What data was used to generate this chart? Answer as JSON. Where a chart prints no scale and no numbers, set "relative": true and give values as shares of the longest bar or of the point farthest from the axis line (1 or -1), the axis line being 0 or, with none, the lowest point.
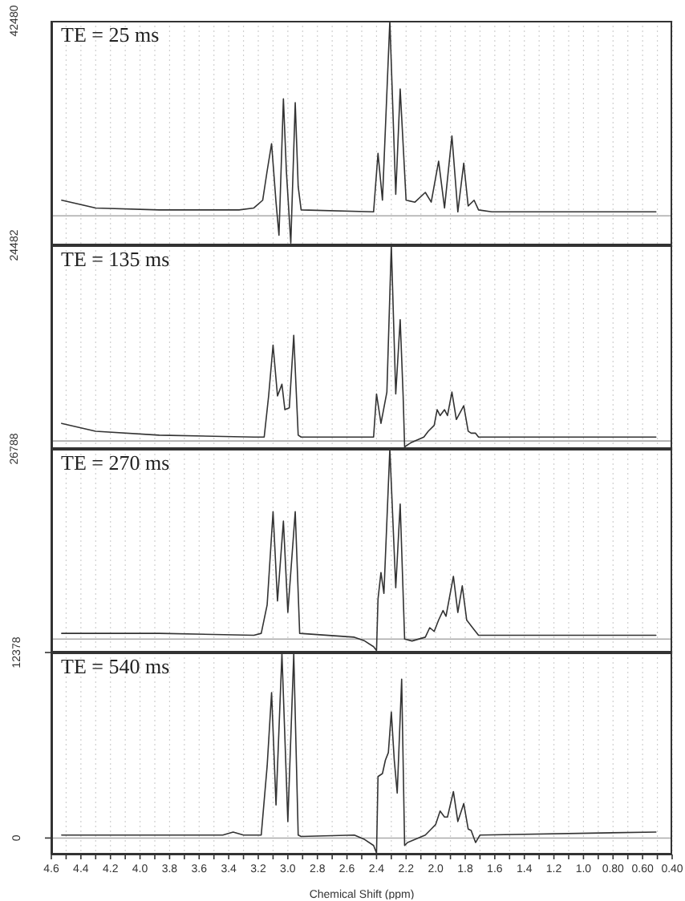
{
  "chart_data": [
    {
      "type": "line",
      "title": "TE = 25 ms",
      "relative": true,
      "annotations": [
        "42480"
      ],
      "color": "#333333",
      "x": [
        4.53,
        4.3,
        3.87,
        3.33,
        3.23,
        3.17,
        3.14,
        3.11,
        3.08,
        3.06,
        3.03,
        3.01,
        2.98,
        2.95,
        2.93,
        2.91,
        2.42,
        2.39,
        2.36,
        2.31,
        2.27,
        2.24,
        2.2,
        2.14,
        2.07,
        2.03,
        1.98,
        1.94,
        1.89,
        1.85,
        1.81,
        1.78,
        1.74,
        1.71,
        1.62,
        0.51
      ],
      "values": [
        0.08,
        0.04,
        0.03,
        0.03,
        0.04,
        0.08,
        0.23,
        0.37,
        0.07,
        -0.1,
        0.6,
        0.23,
        -0.14,
        0.58,
        0.15,
        0.03,
        0.02,
        0.32,
        0.08,
        1,
        0.11,
        0.65,
        0.08,
        0.07,
        0.12,
        0.07,
        0.28,
        0.04,
        0.41,
        0.02,
        0.27,
        0.05,
        0.08,
        0.03,
        0.02,
        0.02
      ],
      "xlim": [
        4.6,
        0.4
      ],
      "xticks": [
        {
          "value": 4.6,
          "label": null
        },
        {
          "value": 4.5,
          "label": null
        },
        {
          "value": 4.4,
          "label": null
        },
        {
          "value": 4.3,
          "label": null
        },
        {
          "value": 4.2,
          "label": null
        },
        {
          "value": 4.1,
          "label": null
        },
        {
          "value": 4,
          "label": null
        },
        {
          "value": 3.9,
          "label": null
        },
        {
          "value": 3.8,
          "label": null
        },
        {
          "value": 3.7,
          "label": null
        },
        {
          "value": 3.6,
          "label": null
        },
        {
          "value": 3.5,
          "label": null
        },
        {
          "value": 3.4,
          "label": null
        },
        {
          "value": 3.3,
          "label": null
        },
        {
          "value": 3.2,
          "label": null
        },
        {
          "value": 3.1,
          "label": null
        },
        {
          "value": 3,
          "label": null
        },
        {
          "value": 2.9,
          "label": null
        },
        {
          "value": 2.8,
          "label": null
        },
        {
          "value": 2.7,
          "label": null
        },
        {
          "value": 2.6,
          "label": null
        },
        {
          "value": 2.5,
          "label": null
        },
        {
          "value": 2.4,
          "label": null
        },
        {
          "value": 2.3,
          "label": null
        },
        {
          "value": 2.2,
          "label": null
        },
        {
          "value": 2.1,
          "label": null
        },
        {
          "value": 2,
          "label": null
        },
        {
          "value": 1.9,
          "label": null
        },
        {
          "value": 1.8,
          "label": null
        },
        {
          "value": 1.7,
          "label": null
        },
        {
          "value": 1.6,
          "label": null
        },
        {
          "value": 1.5,
          "label": null
        },
        {
          "value": 1.4,
          "label": null
        },
        {
          "value": 1.3,
          "label": null
        },
        {
          "value": 1.2,
          "label": null
        },
        {
          "value": 1.1,
          "label": null
        },
        {
          "value": 1,
          "label": null
        },
        {
          "value": 0.9,
          "label": null
        },
        {
          "value": 0.8,
          "label": null
        },
        {
          "value": 0.7,
          "label": null
        },
        {
          "value": 0.6,
          "label": null
        },
        {
          "value": 0.5,
          "label": null
        },
        {
          "value": 0.4,
          "label": null
        }
      ],
      "grid": "x",
      "tick_labels": false,
      "ref_lines": [
        {
          "axis": "y",
          "value": 0,
          "color": "#aaaaaa"
        }
      ]
    },
    {
      "type": "line",
      "title": "TE = 135 ms",
      "relative": true,
      "annotations": [
        "24482"
      ],
      "color": "#333333",
      "x": [
        4.53,
        4.3,
        3.87,
        3.23,
        3.16,
        3.13,
        3.1,
        3.07,
        3.04,
        3.02,
        2.99,
        2.96,
        2.93,
        2.91,
        2.42,
        2.4,
        2.37,
        2.33,
        2.3,
        2.27,
        2.24,
        2.22,
        2.21,
        2.17,
        2.08,
        2.05,
        2.01,
        1.99,
        1.97,
        1.94,
        1.92,
        1.89,
        1.86,
        1.81,
        1.78,
        1.76,
        1.73,
        1.71,
        0.51
      ],
      "values": [
        0.09,
        0.05,
        0.03,
        0.02,
        0.02,
        0.23,
        0.49,
        0.23,
        0.29,
        0.16,
        0.17,
        0.54,
        0.03,
        0.02,
        0.02,
        0.24,
        0.09,
        0.25,
        1,
        0.24,
        0.62,
        0.23,
        -0.03,
        -0.01,
        0.02,
        0.05,
        0.08,
        0.16,
        0.13,
        0.16,
        0.13,
        0.25,
        0.11,
        0.18,
        0.05,
        0.04,
        0.04,
        0.02,
        0.02
      ],
      "xlim": [
        4.6,
        0.4
      ],
      "xticks": [
        {
          "value": 4.6,
          "label": null
        },
        {
          "value": 4.5,
          "label": null
        },
        {
          "value": 4.4,
          "label": null
        },
        {
          "value": 4.3,
          "label": null
        },
        {
          "value": 4.2,
          "label": null
        },
        {
          "value": 4.1,
          "label": null
        },
        {
          "value": 4,
          "label": null
        },
        {
          "value": 3.9,
          "label": null
        },
        {
          "value": 3.8,
          "label": null
        },
        {
          "value": 3.7,
          "label": null
        },
        {
          "value": 3.6,
          "label": null
        },
        {
          "value": 3.5,
          "label": null
        },
        {
          "value": 3.4,
          "label": null
        },
        {
          "value": 3.3,
          "label": null
        },
        {
          "value": 3.2,
          "label": null
        },
        {
          "value": 3.1,
          "label": null
        },
        {
          "value": 3,
          "label": null
        },
        {
          "value": 2.9,
          "label": null
        },
        {
          "value": 2.8,
          "label": null
        },
        {
          "value": 2.7,
          "label": null
        },
        {
          "value": 2.6,
          "label": null
        },
        {
          "value": 2.5,
          "label": null
        },
        {
          "value": 2.4,
          "label": null
        },
        {
          "value": 2.3,
          "label": null
        },
        {
          "value": 2.2,
          "label": null
        },
        {
          "value": 2.1,
          "label": null
        },
        {
          "value": 2,
          "label": null
        },
        {
          "value": 1.9,
          "label": null
        },
        {
          "value": 1.8,
          "label": null
        },
        {
          "value": 1.7,
          "label": null
        },
        {
          "value": 1.6,
          "label": null
        },
        {
          "value": 1.5,
          "label": null
        },
        {
          "value": 1.4,
          "label": null
        },
        {
          "value": 1.3,
          "label": null
        },
        {
          "value": 1.2,
          "label": null
        },
        {
          "value": 1.1,
          "label": null
        },
        {
          "value": 1,
          "label": null
        },
        {
          "value": 0.9,
          "label": null
        },
        {
          "value": 0.8,
          "label": null
        },
        {
          "value": 0.7,
          "label": null
        },
        {
          "value": 0.6,
          "label": null
        },
        {
          "value": 0.5,
          "label": null
        },
        {
          "value": 0.4,
          "label": null
        }
      ],
      "grid": "x",
      "tick_labels": false,
      "ref_lines": [
        {
          "axis": "y",
          "value": 0,
          "color": "#aaaaaa"
        }
      ]
    },
    {
      "type": "line",
      "title": "TE = 270 ms",
      "relative": true,
      "annotations": [
        "26788"
      ],
      "color": "#333333",
      "x": [
        4.53,
        3.87,
        3.23,
        3.18,
        3.14,
        3.1,
        3.07,
        3.03,
        3.0,
        2.95,
        2.92,
        2.55,
        2.48,
        2.42,
        2.4,
        2.39,
        2.37,
        2.35,
        2.31,
        2.27,
        2.24,
        2.21,
        2.16,
        2.07,
        2.04,
        2.01,
        1.98,
        1.95,
        1.93,
        1.88,
        1.85,
        1.82,
        1.79,
        1.76,
        1.74,
        1.71,
        1.68,
        0.51
      ],
      "values": [
        0.03,
        0.03,
        0.02,
        0.03,
        0.18,
        0.67,
        0.2,
        0.62,
        0.14,
        0.67,
        0.03,
        0.01,
        -0.01,
        -0.04,
        -0.06,
        0.21,
        0.35,
        0.24,
        1,
        0.27,
        0.71,
        0.0,
        -0.01,
        0.01,
        0.06,
        0.04,
        0.1,
        0.15,
        0.12,
        0.33,
        0.14,
        0.28,
        0.1,
        0.07,
        0.05,
        0.02,
        0.02,
        0.02
      ],
      "xlim": [
        4.6,
        0.4
      ],
      "xticks": [
        {
          "value": 4.6,
          "label": null
        },
        {
          "value": 4.5,
          "label": null
        },
        {
          "value": 4.4,
          "label": null
        },
        {
          "value": 4.3,
          "label": null
        },
        {
          "value": 4.2,
          "label": null
        },
        {
          "value": 4.1,
          "label": null
        },
        {
          "value": 4,
          "label": null
        },
        {
          "value": 3.9,
          "label": null
        },
        {
          "value": 3.8,
          "label": null
        },
        {
          "value": 3.7,
          "label": null
        },
        {
          "value": 3.6,
          "label": null
        },
        {
          "value": 3.5,
          "label": null
        },
        {
          "value": 3.4,
          "label": null
        },
        {
          "value": 3.3,
          "label": null
        },
        {
          "value": 3.2,
          "label": null
        },
        {
          "value": 3.1,
          "label": null
        },
        {
          "value": 3,
          "label": null
        },
        {
          "value": 2.9,
          "label": null
        },
        {
          "value": 2.8,
          "label": null
        },
        {
          "value": 2.7,
          "label": null
        },
        {
          "value": 2.6,
          "label": null
        },
        {
          "value": 2.5,
          "label": null
        },
        {
          "value": 2.4,
          "label": null
        },
        {
          "value": 2.3,
          "label": null
        },
        {
          "value": 2.2,
          "label": null
        },
        {
          "value": 2.1,
          "label": null
        },
        {
          "value": 2,
          "label": null
        },
        {
          "value": 1.9,
          "label": null
        },
        {
          "value": 1.8,
          "label": null
        },
        {
          "value": 1.7,
          "label": null
        },
        {
          "value": 1.6,
          "label": null
        },
        {
          "value": 1.5,
          "label": null
        },
        {
          "value": 1.4,
          "label": null
        },
        {
          "value": 1.3,
          "label": null
        },
        {
          "value": 1.2,
          "label": null
        },
        {
          "value": 1.1,
          "label": null
        },
        {
          "value": 1,
          "label": null
        },
        {
          "value": 0.9,
          "label": null
        },
        {
          "value": 0.8,
          "label": null
        },
        {
          "value": 0.7,
          "label": null
        },
        {
          "value": 0.6,
          "label": null
        },
        {
          "value": 0.5,
          "label": null
        },
        {
          "value": 0.4,
          "label": null
        }
      ],
      "grid": "x",
      "tick_labels": false,
      "ref_lines": [
        {
          "axis": "y",
          "value": 0,
          "color": "#aaaaaa"
        }
      ]
    },
    {
      "type": "line",
      "title": "TE = 540 ms",
      "xlabel": "Chemical Shift (ppm)",
      "color": "#333333",
      "x": [
        4.53,
        3.87,
        3.44,
        3.37,
        3.3,
        3.18,
        3.14,
        3.11,
        3.08,
        3.04,
        3.0,
        2.96,
        2.93,
        2.91,
        2.55,
        2.48,
        2.42,
        2.4,
        2.39,
        2.36,
        2.34,
        2.32,
        2.3,
        2.28,
        2.26,
        2.23,
        2.21,
        2.19,
        2.07,
        2.03,
        2.0,
        1.97,
        1.94,
        1.92,
        1.88,
        1.85,
        1.81,
        1.78,
        1.76,
        1.73,
        1.7,
        0.51
      ],
      "values": [
        200,
        200,
        200,
        400,
        200,
        200,
        4800,
        9700,
        2200,
        12300,
        1100,
        12300,
        200,
        100,
        200,
        -100,
        -500,
        -1000,
        4100,
        4300,
        5200,
        5700,
        8400,
        5200,
        3000,
        10600,
        -500,
        -300,
        200,
        600,
        900,
        1800,
        1400,
        1400,
        3100,
        1100,
        2300,
        600,
        500,
        -300,
        200,
        400
      ],
      "xlim": [
        4.6,
        0.4
      ],
      "xticks": [
        4.6,
        {
          "value": 4.5,
          "label": null
        },
        4.4,
        {
          "value": 4.3,
          "label": null
        },
        4.2,
        {
          "value": 4.1,
          "label": null
        },
        {
          "value": 4,
          "label": "4.0"
        },
        {
          "value": 3.9,
          "label": null
        },
        3.8,
        {
          "value": 3.7,
          "label": null
        },
        3.6,
        {
          "value": 3.5,
          "label": null
        },
        3.4,
        {
          "value": 3.3,
          "label": null
        },
        3.2,
        {
          "value": 3.1,
          "label": null
        },
        {
          "value": 3,
          "label": "3.0"
        },
        {
          "value": 2.9,
          "label": null
        },
        2.8,
        {
          "value": 2.7,
          "label": null
        },
        2.6,
        {
          "value": 2.5,
          "label": null
        },
        2.4,
        {
          "value": 2.3,
          "label": null
        },
        2.2,
        {
          "value": 2.1,
          "label": null
        },
        {
          "value": 2,
          "label": "2.0"
        },
        {
          "value": 1.9,
          "label": null
        },
        1.8,
        {
          "value": 1.7,
          "label": null
        },
        1.6,
        {
          "value": 1.5,
          "label": null
        },
        1.4,
        {
          "value": 1.3,
          "label": null
        },
        1.2,
        {
          "value": 1.1,
          "label": null
        },
        {
          "value": 1,
          "label": "1.0"
        },
        {
          "value": 0.9,
          "label": null
        },
        {
          "value": 0.8,
          "label": "0.80"
        },
        {
          "value": 0.7,
          "label": null
        },
        {
          "value": 0.6,
          "label": "0.60"
        },
        {
          "value": 0.5,
          "label": null
        },
        {
          "value": 0.4,
          "label": "0.40"
        }
      ],
      "ylim": [
        -1100,
        12378
      ],
      "yticks": [
        0,
        12378
      ],
      "grid": "x",
      "ref_lines": [
        {
          "axis": "y",
          "value": 0,
          "color": "#aaaaaa"
        }
      ]
    }
  ]
}
